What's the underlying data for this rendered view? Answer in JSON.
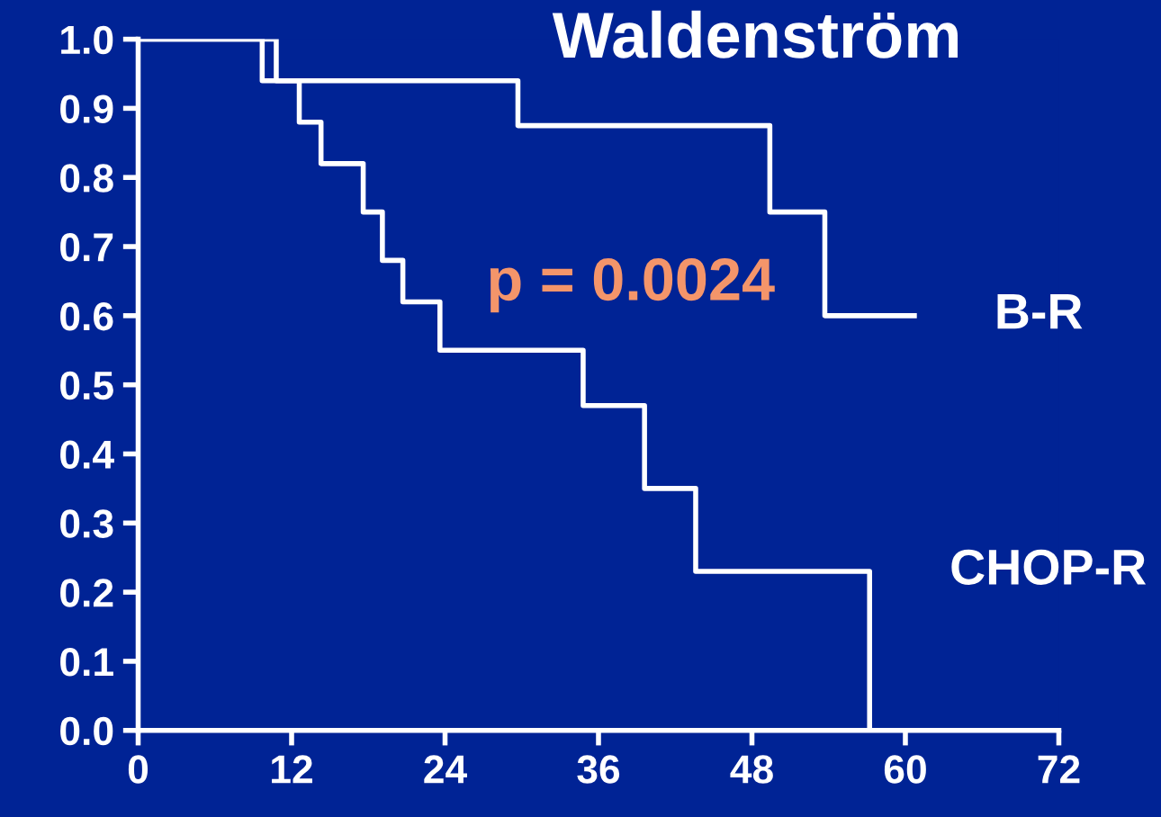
{
  "chart_data": {
    "type": "step",
    "title": "Waldenström",
    "series": [
      {
        "name": "B-R",
        "color": "#ffffff",
        "x": [
          0,
          9.7,
          29.7,
          49.4,
          53.7,
          60.7
        ],
        "values": [
          1.0,
          0.94,
          0.875,
          0.75,
          0.6,
          0.6
        ]
      },
      {
        "name": "CHOP-R",
        "color": "#ffffff",
        "x": [
          0,
          10.8,
          12.6,
          14.3,
          17.6,
          19.1,
          20.7,
          23.6,
          34.8,
          39.6,
          43.6,
          57.2
        ],
        "values": [
          1.0,
          0.94,
          0.88,
          0.82,
          0.75,
          0.68,
          0.62,
          0.55,
          0.47,
          0.35,
          0.23,
          0.0
        ]
      }
    ],
    "annotations": [
      "p = 0.0024"
    ],
    "xlim": [
      0,
      72
    ],
    "xticks": [
      0,
      12,
      24,
      36,
      48,
      60,
      72
    ],
    "ylim": [
      0,
      1.0
    ],
    "yticks": [
      {
        "value": 0,
        "label": "0.0"
      },
      {
        "value": 0.1,
        "label": "0.1"
      },
      {
        "value": 0.2,
        "label": "0.2"
      },
      {
        "value": 0.3,
        "label": "0.3"
      },
      {
        "value": 0.4,
        "label": "0.4"
      },
      {
        "value": 0.5,
        "label": "0.5"
      },
      {
        "value": 0.6,
        "label": "0.6"
      },
      {
        "value": 0.7,
        "label": "0.7"
      },
      {
        "value": 0.8,
        "label": "0.8"
      },
      {
        "value": 0.9,
        "label": "0.9"
      },
      {
        "value": 1.0,
        "label": "1.0"
      }
    ],
    "grid": false,
    "legend": false,
    "marker": "none",
    "line_style": "solid"
  }
}
